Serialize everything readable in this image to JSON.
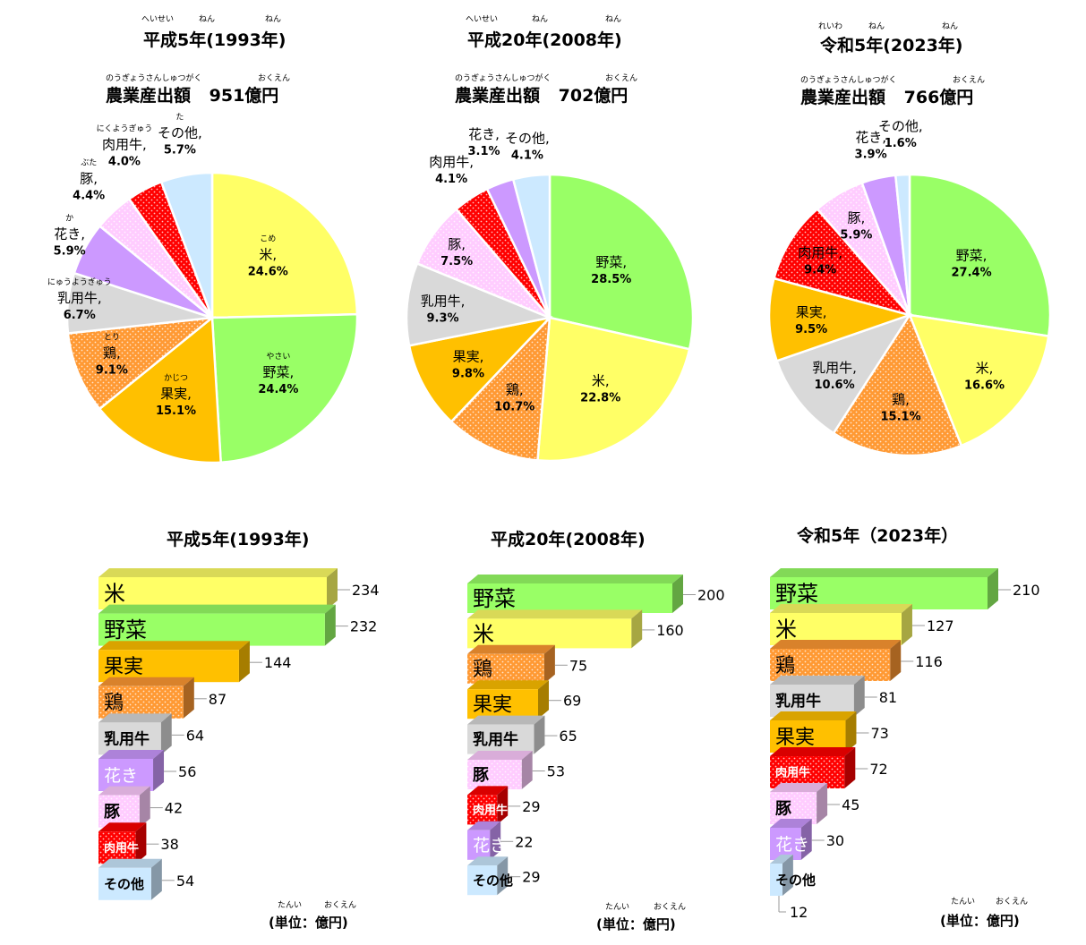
{
  "panels": [
    {
      "title": "平成5年(1993年)",
      "title_ruby": [
        "へいせい",
        "ねん",
        "ねん"
      ],
      "subtitle_prefix": "農業産出額",
      "subtitle_value": "951億円",
      "subtitle_ruby": [
        "のうぎょうさんしゅつがく",
        "おくえん"
      ],
      "bar_title": "平成5年(1993年)",
      "unit_label": "(単位：億円)",
      "unit_ruby": [
        "たんい",
        "おくえん"
      ]
    },
    {
      "title": "平成20年(2008年)",
      "title_ruby": [
        "へいせい",
        "ねん",
        "ねん"
      ],
      "subtitle_prefix": "農業産出額",
      "subtitle_value": "702億円",
      "subtitle_ruby": [
        "のうぎょうさんしゅつがく",
        "おくえん"
      ],
      "bar_title": "平成20年(2008年)",
      "unit_label": "(単位：億円)",
      "unit_ruby": [
        "たんい",
        "おくえん"
      ]
    },
    {
      "title": "令和5年(2023年)",
      "title_ruby": [
        "れいわ",
        "ねん",
        "ねん"
      ],
      "subtitle_prefix": "農業産出額",
      "subtitle_value": "766億円",
      "subtitle_ruby": [
        "のうぎょうさんしゅつがく",
        "おくえん"
      ],
      "bar_title": "令和5年（2023年）",
      "unit_label": "(単位：億円)",
      "unit_ruby": [
        "たんい",
        "おくえん"
      ]
    }
  ],
  "colors": {
    "米": "#ffff66",
    "野菜": "#99ff66",
    "果実": "#ffc000",
    "鶏": "#ff9933",
    "乳用牛": "#d9d9d9",
    "花き": "#cc99ff",
    "豚": "#ffccff",
    "肉用牛": "#ff0000",
    "その他": "#cce9ff"
  },
  "chart_data": [
    {
      "type": "pie",
      "title": "平成5年(1993年)",
      "total": "951億円",
      "slices": [
        {
          "label": "米",
          "value": 24.6,
          "text": "24.6%",
          "ruby": "こめ"
        },
        {
          "label": "野菜",
          "value": 24.4,
          "text": "24.4%",
          "ruby": "やさい"
        },
        {
          "label": "果実",
          "value": 15.1,
          "text": "15.1%",
          "ruby": "かじつ"
        },
        {
          "label": "鶏",
          "value": 9.1,
          "text": "9.1%",
          "ruby": "とり"
        },
        {
          "label": "乳用牛",
          "value": 6.7,
          "text": "6.7%",
          "ruby": "にゅうようぎゅう"
        },
        {
          "label": "花き",
          "value": 5.9,
          "text": "5.9%",
          "ruby": "か"
        },
        {
          "label": "豚",
          "value": 4.4,
          "text": "4.4%",
          "ruby": "ぶた"
        },
        {
          "label": "肉用牛",
          "value": 4.0,
          "text": "4.0%",
          "ruby": "にくようぎゅう"
        },
        {
          "label": "その他",
          "value": 5.7,
          "text": "5.7%",
          "ruby": "た"
        }
      ]
    },
    {
      "type": "pie",
      "title": "平成20年(2008年)",
      "total": "702億円",
      "slices": [
        {
          "label": "野菜",
          "value": 28.5,
          "text": "28.5%"
        },
        {
          "label": "米",
          "value": 22.8,
          "text": "22.8%"
        },
        {
          "label": "鶏",
          "value": 10.7,
          "text": "10.7%"
        },
        {
          "label": "果実",
          "value": 9.8,
          "text": "9.8%"
        },
        {
          "label": "乳用牛",
          "value": 9.3,
          "text": "9.3%"
        },
        {
          "label": "豚",
          "value": 7.5,
          "text": "7.5%"
        },
        {
          "label": "肉用牛",
          "value": 4.1,
          "text": "4.1%"
        },
        {
          "label": "花き",
          "value": 3.1,
          "text": "3.1%"
        },
        {
          "label": "その他",
          "value": 4.1,
          "text": "4.1%"
        }
      ]
    },
    {
      "type": "pie",
      "title": "令和5年(2023年)",
      "total": "766億円",
      "slices": [
        {
          "label": "野菜",
          "value": 27.4,
          "text": "27.4%"
        },
        {
          "label": "米",
          "value": 16.6,
          "text": "16.6%"
        },
        {
          "label": "鶏",
          "value": 15.1,
          "text": "15.1%"
        },
        {
          "label": "乳用牛",
          "value": 10.6,
          "text": "10.6%"
        },
        {
          "label": "果実",
          "value": 9.5,
          "text": "9.5%"
        },
        {
          "label": "肉用牛",
          "value": 9.4,
          "text": "9.4%"
        },
        {
          "label": "豚",
          "value": 5.9,
          "text": "5.9%"
        },
        {
          "label": "花き",
          "value": 3.9,
          "text": "3.9%"
        },
        {
          "label": "その他",
          "value": 1.6,
          "text": "1.6%"
        }
      ]
    },
    {
      "type": "bar",
      "title": "平成5年(1993年)",
      "unit": "億円",
      "categories": [
        "米",
        "野菜",
        "果実",
        "鶏",
        "乳用牛",
        "花き",
        "豚",
        "肉用牛",
        "その他"
      ],
      "values": [
        234,
        232,
        144,
        87,
        64,
        56,
        42,
        38,
        54
      ]
    },
    {
      "type": "bar",
      "title": "平成20年(2008年)",
      "unit": "億円",
      "categories": [
        "野菜",
        "米",
        "鶏",
        "果実",
        "乳用牛",
        "豚",
        "肉用牛",
        "花き",
        "その他"
      ],
      "values": [
        200,
        160,
        75,
        69,
        65,
        53,
        29,
        22,
        29
      ]
    },
    {
      "type": "bar",
      "title": "令和5年（2023年）",
      "unit": "億円",
      "categories": [
        "野菜",
        "米",
        "鶏",
        "乳用牛",
        "果実",
        "肉用牛",
        "豚",
        "花き",
        "その他"
      ],
      "values": [
        210,
        127,
        116,
        81,
        73,
        72,
        45,
        30,
        12
      ]
    }
  ]
}
